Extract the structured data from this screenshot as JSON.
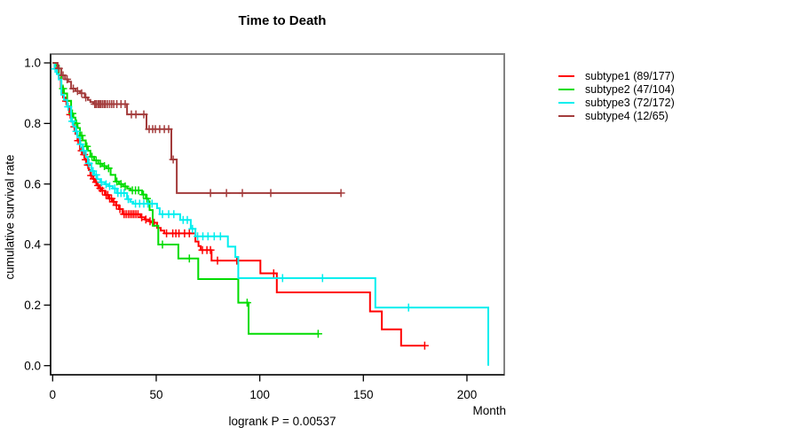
{
  "header": {
    "title": "Time to Death"
  },
  "chart_data": {
    "type": "line",
    "variant": "kaplan-meier-step",
    "title": "Time to Death",
    "xlabel": "Month",
    "ylabel": "cumulative survival rate",
    "annotation": "logrank P = 0.00537",
    "grid": false,
    "legend_position": "right-outside",
    "xlim": [
      0,
      219
    ],
    "ylim": [
      0.0,
      1.0
    ],
    "x_ticks": [
      {
        "label": "0",
        "value": 0
      },
      {
        "label": "50",
        "value": 50
      },
      {
        "label": "100",
        "value": 100
      },
      {
        "label": "150",
        "value": 150
      },
      {
        "label": "200",
        "value": 200
      }
    ],
    "y_ticks": [
      {
        "label": "0.0",
        "value": 0.0
      },
      {
        "label": "0.2",
        "value": 0.2
      },
      {
        "label": "0.4",
        "value": 0.4
      },
      {
        "label": "0.6",
        "value": 0.6
      },
      {
        "label": "0.8",
        "value": 0.8
      },
      {
        "label": "1.0",
        "value": 1.0
      }
    ],
    "series": [
      {
        "name": "subtype1 (89/177)",
        "events": 89,
        "n": 177,
        "color": "#ff0000",
        "steps": [
          [
            0,
            1
          ],
          [
            1,
            0.983
          ],
          [
            2,
            0.966
          ],
          [
            3,
            0.949
          ],
          [
            4,
            0.92
          ],
          [
            5,
            0.886
          ],
          [
            6,
            0.874
          ],
          [
            7,
            0.857
          ],
          [
            8,
            0.829
          ],
          [
            9,
            0.806
          ],
          [
            10,
            0.789
          ],
          [
            11,
            0.766
          ],
          [
            12,
            0.743
          ],
          [
            13.2,
            0.71
          ],
          [
            14.5,
            0.697
          ],
          [
            15.5,
            0.68
          ],
          [
            16.5,
            0.663
          ],
          [
            17.5,
            0.646
          ],
          [
            18.2,
            0.628
          ],
          [
            19.5,
            0.617
          ],
          [
            20.5,
            0.606
          ],
          [
            21.5,
            0.595
          ],
          [
            22.5,
            0.586
          ],
          [
            23.5,
            0.578
          ],
          [
            25.2,
            0.564
          ],
          [
            27,
            0.552
          ],
          [
            29,
            0.541
          ],
          [
            30.5,
            0.53
          ],
          [
            32,
            0.517
          ],
          [
            33.7,
            0.5
          ],
          [
            42.3,
            0.49
          ],
          [
            44.5,
            0.483
          ],
          [
            46.5,
            0.477
          ],
          [
            48.5,
            0.472
          ],
          [
            50.4,
            0.455
          ],
          [
            52.2,
            0.446
          ],
          [
            53.9,
            0.437
          ],
          [
            68.9,
            0.41
          ],
          [
            70.4,
            0.395
          ],
          [
            71.5,
            0.382
          ],
          [
            76.7,
            0.347
          ],
          [
            100.3,
            0.305
          ],
          [
            108.2,
            0.242
          ],
          [
            153.2,
            0.179
          ],
          [
            158.9,
            0.12
          ],
          [
            168.2,
            0.066
          ],
          [
            179.6,
            0.066
          ]
        ],
        "censor_months": [
          6.5,
          8.5,
          10.5,
          12.3,
          14,
          15.2,
          16,
          17,
          18.6,
          19.8,
          21,
          22,
          23,
          24,
          25.8,
          26.6,
          27.5,
          28.4,
          29.5,
          30.8,
          32.5,
          34.5,
          35.5,
          36.5,
          37.4,
          38.3,
          39.2,
          40.2,
          41.2,
          43,
          45,
          47,
          49,
          55,
          58,
          59.5,
          61,
          63.7,
          66,
          72.3,
          74.5,
          76.2,
          79.6,
          88.9,
          106.7,
          179.6
        ]
      },
      {
        "name": "subtype2 (47/104)",
        "events": 47,
        "n": 104,
        "color": "#00dc00",
        "steps": [
          [
            0,
            1
          ],
          [
            1.5,
            0.99
          ],
          [
            3,
            0.96
          ],
          [
            4.2,
            0.915
          ],
          [
            5.5,
            0.899
          ],
          [
            7,
            0.875
          ],
          [
            8.9,
            0.833
          ],
          [
            10,
            0.819
          ],
          [
            11,
            0.8
          ],
          [
            12,
            0.785
          ],
          [
            13.2,
            0.76
          ],
          [
            14.5,
            0.744
          ],
          [
            16,
            0.724
          ],
          [
            17,
            0.71
          ],
          [
            18.2,
            0.69
          ],
          [
            20,
            0.678
          ],
          [
            22,
            0.667
          ],
          [
            24,
            0.659
          ],
          [
            26,
            0.652
          ],
          [
            28,
            0.63
          ],
          [
            30.3,
            0.608
          ],
          [
            32,
            0.6
          ],
          [
            34,
            0.592
          ],
          [
            36,
            0.585
          ],
          [
            37.6,
            0.579
          ],
          [
            43.2,
            0.565
          ],
          [
            45,
            0.552
          ],
          [
            46.2,
            0.543
          ],
          [
            46.8,
            0.514
          ],
          [
            48.3,
            0.462
          ],
          [
            51,
            0.4
          ],
          [
            60.7,
            0.354
          ],
          [
            70.3,
            0.286
          ],
          [
            89.6,
            0.208
          ],
          [
            94.6,
            0.105
          ],
          [
            128.2,
            0.105
          ]
        ],
        "censor_months": [
          5,
          9.5,
          11.5,
          14,
          16.5,
          19,
          21,
          23,
          25,
          27,
          31,
          33,
          35,
          38.5,
          40,
          41.5,
          43.8,
          45.5,
          53,
          66,
          93.9,
          128.2
        ]
      },
      {
        "name": "subtype3 (72/172)",
        "events": 72,
        "n": 172,
        "color": "#00eeee",
        "steps": [
          [
            0,
            1
          ],
          [
            1,
            0.98
          ],
          [
            2,
            0.963
          ],
          [
            3,
            0.945
          ],
          [
            4.2,
            0.895
          ],
          [
            5.5,
            0.878
          ],
          [
            7,
            0.855
          ],
          [
            8.9,
            0.807
          ],
          [
            10,
            0.79
          ],
          [
            11,
            0.774
          ],
          [
            12,
            0.754
          ],
          [
            13.2,
            0.731
          ],
          [
            14.5,
            0.71
          ],
          [
            16,
            0.689
          ],
          [
            17,
            0.668
          ],
          [
            18.7,
            0.643
          ],
          [
            20,
            0.63
          ],
          [
            21.5,
            0.616
          ],
          [
            23,
            0.606
          ],
          [
            25.2,
            0.599
          ],
          [
            27,
            0.593
          ],
          [
            29,
            0.585
          ],
          [
            31,
            0.57
          ],
          [
            35.9,
            0.55
          ],
          [
            37.5,
            0.541
          ],
          [
            38.9,
            0.535
          ],
          [
            50.4,
            0.52
          ],
          [
            51.7,
            0.5
          ],
          [
            61.6,
            0.481
          ],
          [
            66.7,
            0.452
          ],
          [
            68.9,
            0.427
          ],
          [
            84.6,
            0.393
          ],
          [
            88.2,
            0.359
          ],
          [
            89.6,
            0.289
          ],
          [
            155.8,
            0.192
          ],
          [
            210.3,
            0
          ]
        ],
        "censor_months": [
          1.2,
          7.5,
          9.5,
          11.5,
          13.5,
          15,
          17.5,
          19.5,
          21,
          23.5,
          25.8,
          27.5,
          30,
          31.5,
          33,
          34.5,
          36.5,
          40,
          42,
          44,
          46,
          48,
          53,
          56,
          58.5,
          63,
          65,
          67.5,
          70,
          72.5,
          75,
          78,
          81,
          111,
          130.3,
          171.8
        ]
      },
      {
        "name": "subtype4 (12/65)",
        "events": 12,
        "n": 65,
        "color": "#a33b3b",
        "steps": [
          [
            0,
            1
          ],
          [
            2.4,
            0.982
          ],
          [
            4.2,
            0.959
          ],
          [
            6,
            0.946
          ],
          [
            7.5,
            0.938
          ],
          [
            8.9,
            0.915
          ],
          [
            11,
            0.907
          ],
          [
            13.2,
            0.9
          ],
          [
            15.5,
            0.886
          ],
          [
            17,
            0.878
          ],
          [
            18.2,
            0.871
          ],
          [
            19.6,
            0.864
          ],
          [
            35.9,
            0.83
          ],
          [
            45.3,
            0.781
          ],
          [
            57.3,
            0.681
          ],
          [
            59.9,
            0.57
          ],
          [
            139.2,
            0.57
          ]
        ],
        "censor_months": [
          3,
          5,
          7,
          10,
          12,
          14,
          16,
          20.3,
          21,
          21.8,
          22.5,
          23.2,
          24,
          24.8,
          25.5,
          26.5,
          27.5,
          28.5,
          29.5,
          31,
          33,
          35,
          38,
          40.2,
          44,
          46.6,
          48.3,
          49.6,
          51.7,
          53.9,
          56,
          58.2,
          76.2,
          83.9,
          91.6,
          105.3,
          139.2
        ]
      }
    ]
  }
}
